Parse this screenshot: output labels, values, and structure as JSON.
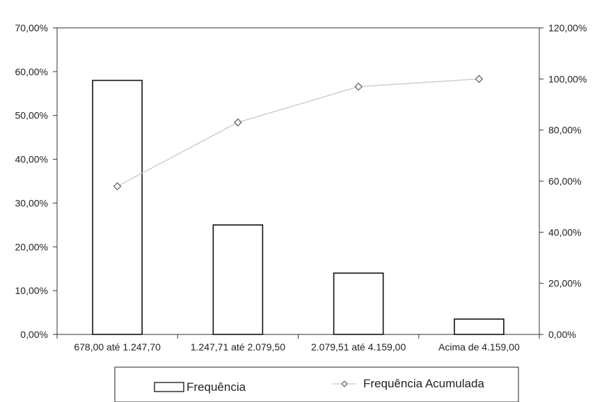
{
  "chart_data": {
    "type": "bar",
    "categories": [
      "678,00 até 1.247,70",
      "1.247,71 até 2.079,50",
      "2.079,51 até 4.159,00",
      "Acima de 4.159,00"
    ],
    "series": [
      {
        "name": "Frequência",
        "kind": "bar",
        "axis": "left",
        "values": [
          58.0,
          25.0,
          14.0,
          3.5
        ]
      },
      {
        "name": "Frequência Acumulada",
        "kind": "line",
        "marker": "diamond",
        "axis": "right",
        "values": [
          58.0,
          83.0,
          97.0,
          100.0
        ]
      }
    ],
    "y_left": {
      "min": 0,
      "max": 70,
      "step": 10,
      "tick_labels": [
        "0,00%",
        "10,00%",
        "20,00%",
        "30,00%",
        "40,00%",
        "50,00%",
        "60,00%",
        "70,00%"
      ]
    },
    "y_right": {
      "min": 0,
      "max": 120,
      "step": 20,
      "tick_labels": [
        "0,00%",
        "20,00%",
        "40,00%",
        "60,00%",
        "80,00%",
        "100,00%",
        "120,00%"
      ]
    },
    "legend": {
      "position": "bottom",
      "items": [
        "Frequência",
        "Frequência Acumulada"
      ]
    },
    "colors": {
      "bar_fill": "#ffffff",
      "bar_stroke": "#111111",
      "line": "#c9c9c9",
      "marker_stroke": "#555555",
      "axis": "#333333"
    }
  }
}
